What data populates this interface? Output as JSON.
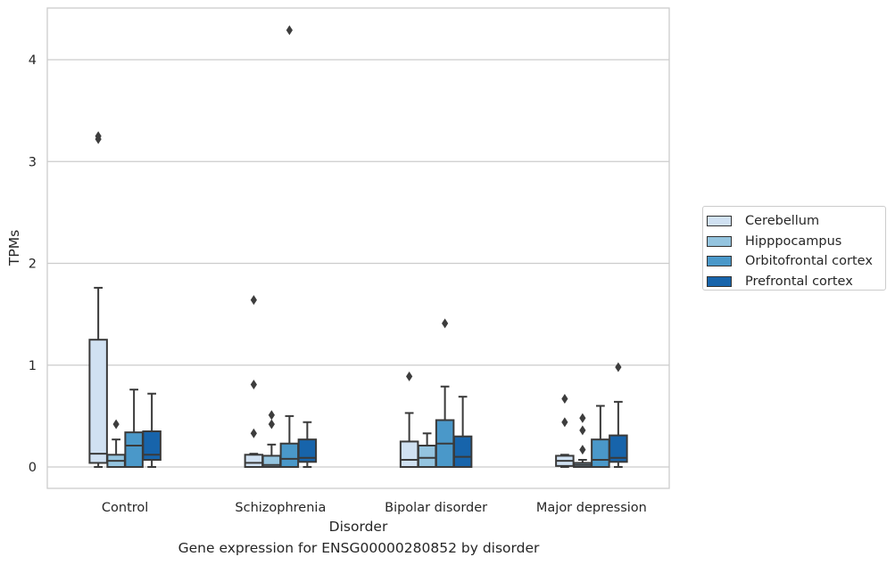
{
  "chart_data": {
    "type": "box",
    "xlabel": "Disorder",
    "ylabel": "TPMs",
    "ylim": [
      -0.2,
      4.5
    ],
    "yticks": [
      0,
      1,
      2,
      3,
      4
    ],
    "grid": "horizontal",
    "legend_position": "right",
    "categories": [
      "Control",
      "Schizophrenia",
      "Bipolar disorder",
      "Major depression"
    ],
    "series": [
      {
        "name": "Cerebellum",
        "color": "#d0e1f2",
        "boxes": [
          {
            "whisker_low": 0.0,
            "q1": 0.04,
            "median": 0.13,
            "q3": 1.25,
            "whisker_high": 1.76,
            "outliers": [
              3.22,
              3.25
            ]
          },
          {
            "whisker_low": 0.0,
            "q1": 0.0,
            "median": 0.04,
            "q3": 0.12,
            "whisker_high": 0.13,
            "outliers": [
              0.33,
              0.81,
              1.64
            ]
          },
          {
            "whisker_low": 0.0,
            "q1": 0.0,
            "median": 0.07,
            "q3": 0.25,
            "whisker_high": 0.53,
            "outliers": [
              0.89
            ]
          },
          {
            "whisker_low": 0.0,
            "q1": 0.01,
            "median": 0.06,
            "q3": 0.11,
            "whisker_high": 0.12,
            "outliers": [
              0.44,
              0.67
            ]
          }
        ]
      },
      {
        "name": "Hipppocampus",
        "color": "#94c4df",
        "boxes": [
          {
            "whisker_low": 0.0,
            "q1": 0.0,
            "median": 0.06,
            "q3": 0.12,
            "whisker_high": 0.27,
            "outliers": [
              0.42
            ]
          },
          {
            "whisker_low": 0.0,
            "q1": 0.0,
            "median": 0.02,
            "q3": 0.11,
            "whisker_high": 0.22,
            "outliers": [
              0.42,
              0.51
            ]
          },
          {
            "whisker_low": 0.0,
            "q1": 0.0,
            "median": 0.09,
            "q3": 0.21,
            "whisker_high": 0.33,
            "outliers": []
          },
          {
            "whisker_low": 0.0,
            "q1": 0.0,
            "median": 0.02,
            "q3": 0.04,
            "whisker_high": 0.07,
            "outliers": [
              0.17,
              0.36,
              0.48
            ]
          }
        ]
      },
      {
        "name": "Orbitofrontal cortex",
        "color": "#4a98c9",
        "boxes": [
          {
            "whisker_low": 0.0,
            "q1": 0.0,
            "median": 0.21,
            "q3": 0.34,
            "whisker_high": 0.76,
            "outliers": []
          },
          {
            "whisker_low": 0.0,
            "q1": 0.0,
            "median": 0.08,
            "q3": 0.23,
            "whisker_high": 0.5,
            "outliers": [
              4.29
            ]
          },
          {
            "whisker_low": 0.0,
            "q1": 0.0,
            "median": 0.23,
            "q3": 0.46,
            "whisker_high": 0.79,
            "outliers": [
              1.41
            ]
          },
          {
            "whisker_low": 0.0,
            "q1": 0.0,
            "median": 0.07,
            "q3": 0.27,
            "whisker_high": 0.6,
            "outliers": []
          }
        ]
      },
      {
        "name": "Prefrontal cortex",
        "color": "#1764ab",
        "boxes": [
          {
            "whisker_low": 0.0,
            "q1": 0.07,
            "median": 0.12,
            "q3": 0.35,
            "whisker_high": 0.72,
            "outliers": []
          },
          {
            "whisker_low": 0.0,
            "q1": 0.05,
            "median": 0.09,
            "q3": 0.27,
            "whisker_high": 0.44,
            "outliers": []
          },
          {
            "whisker_low": 0.0,
            "q1": 0.0,
            "median": 0.1,
            "q3": 0.3,
            "whisker_high": 0.69,
            "outliers": []
          },
          {
            "whisker_low": 0.0,
            "q1": 0.05,
            "median": 0.09,
            "q3": 0.31,
            "whisker_high": 0.64,
            "outliers": [
              0.98
            ]
          }
        ]
      }
    ],
    "caption": "Gene expression for ENSG00000280852 by disorder"
  }
}
